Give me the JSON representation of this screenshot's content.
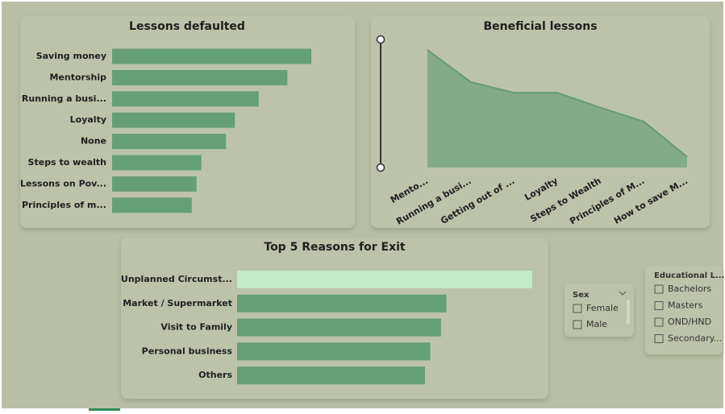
{
  "chart_data": [
    {
      "type": "bar",
      "title": "Lessons defaulted",
      "categories": [
        "Saving money",
        "Mentorship",
        "Running a busi...",
        "Loyalty",
        "None",
        "Steps to wealth",
        "Lessons on Pov...",
        "Principles of m..."
      ],
      "values": [
        25,
        22,
        18.4,
        15.4,
        14.3,
        11.2,
        10.6,
        10
      ],
      "color": "#659f76"
    },
    {
      "type": "area",
      "title": "Beneficial lessons",
      "categories": [
        "Mento...",
        "Running a busi...",
        "Getting out of ...",
        "Loyalty",
        "Steps to Wealth",
        "Principles of M...",
        "How to save M..."
      ],
      "values": [
        11,
        8,
        7,
        7,
        5.6,
        4.3,
        1
      ],
      "color": "#82ab86",
      "line_color": "#669b73"
    },
    {
      "type": "bar",
      "title": "Top 5 Reasons for Exit",
      "categories": [
        "Unplanned Circumst...",
        "Market / Supermarket",
        "Visit to Family",
        "Personal business",
        "Others"
      ],
      "values": [
        11,
        7.8,
        7.6,
        7.2,
        7
      ],
      "colors": [
        "#c3ebc6",
        "#659f76",
        "#659f76",
        "#659f76",
        "#659f76"
      ]
    }
  ],
  "slicers": [
    {
      "title": "Sex",
      "items": [
        "Female",
        "Male"
      ]
    },
    {
      "title": "Educational L...",
      "items": [
        "Bachelors",
        "Masters",
        "OND/HND",
        "Secondary..."
      ]
    }
  ]
}
